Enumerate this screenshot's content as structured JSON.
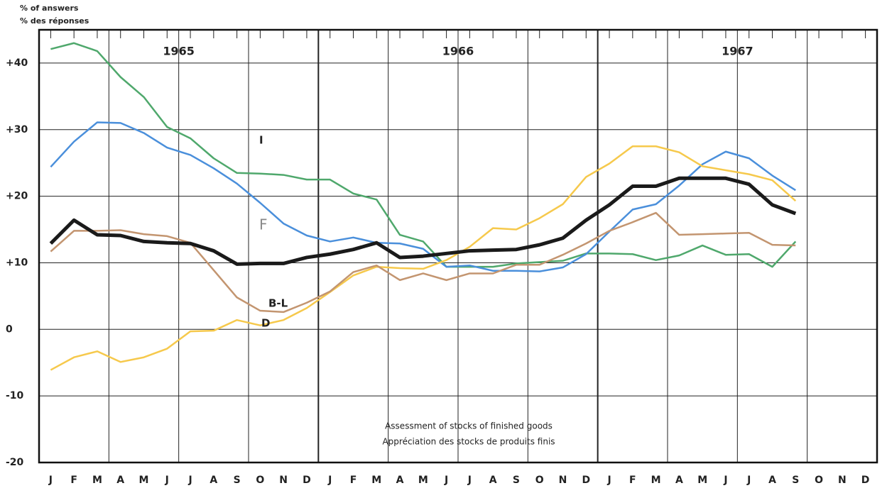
{
  "chart_data": {
    "type": "line",
    "axis_label_lines": [
      "% of answers",
      "% des réponses"
    ],
    "year_labels": [
      "1965",
      "1966",
      "1967"
    ],
    "annotation_lines": [
      "Assessment of stocks of finished goods",
      "Appréciation des stocks de produits finis"
    ],
    "categories": [
      "J",
      "F",
      "M",
      "A",
      "M",
      "J",
      "J",
      "A",
      "S",
      "O",
      "N",
      "D",
      "J",
      "F",
      "M",
      "A",
      "M",
      "J",
      "J",
      "A",
      "S",
      "O",
      "N",
      "D",
      "J",
      "F",
      "M",
      "A",
      "M",
      "J",
      "J",
      "A",
      "S",
      "O",
      "N",
      "D"
    ],
    "series": [
      {
        "name": "I",
        "color": "#4fa86c",
        "values": [
          42.1,
          43,
          41.8,
          37.9,
          34.9,
          30.4,
          28.7,
          25.7,
          23.5,
          23.4,
          23.2,
          22.5,
          22.5,
          20.4,
          19.5,
          14.2,
          13.2,
          9.4,
          9.4,
          9.4,
          9.9,
          10.1,
          10.3,
          11.4,
          11.4,
          11.3,
          10.4,
          11.1,
          12.6,
          11.2,
          11.3,
          9.4,
          13.2,
          null,
          null,
          null
        ]
      },
      {
        "name": "F",
        "color": "#4a8fdb",
        "values": [
          24.4,
          28.2,
          31.1,
          31.0,
          29.5,
          27.3,
          26.2,
          24.2,
          21.9,
          19.0,
          15.9,
          14.1,
          13.2,
          13.8,
          13.0,
          12.9,
          12.1,
          9.4,
          9.6,
          8.8,
          8.8,
          8.7,
          9.3,
          11.3,
          14.7,
          18.0,
          18.8,
          21.6,
          24.8,
          26.7,
          25.7,
          23.1,
          20.9,
          null,
          null,
          null
        ]
      },
      {
        "name": "D",
        "color": "#f6c94c",
        "values": [
          -6.1,
          -4.2,
          -3.3,
          -4.9,
          -4.2,
          -2.9,
          -0.3,
          -0.2,
          1.4,
          0.6,
          1.4,
          3.2,
          5.6,
          8.1,
          9.4,
          9.2,
          9.1,
          10.4,
          12.4,
          15.2,
          15.0,
          16.7,
          18.8,
          22.9,
          24.9,
          27.5,
          27.5,
          26.6,
          24.5,
          23.9,
          23.3,
          22.4,
          19.3,
          null,
          null,
          null
        ]
      },
      {
        "name": "B-L",
        "color": "#c39570",
        "values": [
          11.7,
          14.8,
          14.8,
          14.9,
          14.3,
          14.0,
          13.0,
          8.9,
          4.8,
          2.8,
          2.6,
          4.0,
          5.7,
          8.6,
          9.6,
          7.4,
          8.4,
          7.4,
          8.4,
          8.4,
          9.7,
          9.7,
          11.2,
          12.9,
          14.8,
          16.1,
          17.5,
          14.2,
          14.3,
          14.4,
          14.5,
          12.7,
          12.6,
          null,
          null,
          null
        ]
      },
      {
        "color": "#1a1a1a",
        "values": [
          12.9,
          16.4,
          14.2,
          14.1,
          13.2,
          13.0,
          12.9,
          11.8,
          9.8,
          9.9,
          9.9,
          10.8,
          11.3,
          12.0,
          13.0,
          10.8,
          11.0,
          11.4,
          11.8,
          11.9,
          12.0,
          12.7,
          13.7,
          16.4,
          18.7,
          21.5,
          21.5,
          22.7,
          22.7,
          22.7,
          21.8,
          18.7,
          17.4,
          null,
          null,
          null
        ]
      }
    ],
    "ylim": [
      -20,
      45
    ],
    "yticks": [
      -20,
      -10,
      0,
      {
        "value": 10,
        "label": "+10"
      },
      {
        "value": 20,
        "label": "+20"
      },
      {
        "value": 30,
        "label": "+30"
      },
      {
        "value": 40,
        "label": "+40"
      }
    ],
    "grid": true
  }
}
